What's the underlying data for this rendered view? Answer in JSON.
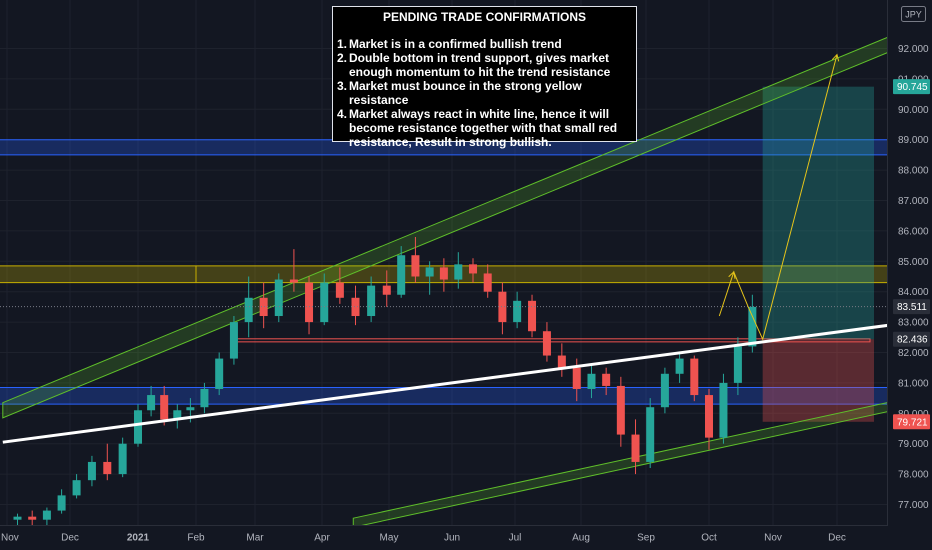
{
  "chart_data": {
    "type": "candlestick",
    "currency_label": "JPY",
    "x_ticks": [
      "Nov",
      "Dec",
      "2021",
      "Feb",
      "Mar",
      "Apr",
      "May",
      "Jun",
      "Jul",
      "Aug",
      "Sep",
      "Oct",
      "Nov",
      "Dec"
    ],
    "y_ticks": [
      "77.000",
      "78.000",
      "79.000",
      "80.000",
      "81.000",
      "82.000",
      "83.000",
      "84.000",
      "85.000",
      "86.000",
      "87.000",
      "88.000",
      "89.000",
      "90.000",
      "91.000",
      "92.000"
    ],
    "ylim": [
      76.2,
      92.9
    ],
    "price_labels": [
      {
        "text": "90.745",
        "value": 90.745,
        "color": "#26a69a"
      },
      {
        "text": "83.511",
        "value": 83.511,
        "color": "#2a2e39"
      },
      {
        "text": "82.436",
        "value": 82.436,
        "color": "#2a2e39"
      },
      {
        "text": "79.721",
        "value": 79.721,
        "color": "#ef5350"
      }
    ],
    "annotation": {
      "title": "PENDING TRADE CONFIRMATIONS",
      "items": [
        {
          "num": "1.",
          "text": "Market is in a confirmed bullish trend"
        },
        {
          "num": "2.",
          "text": "Double bottom in trend support, gives market enough momentum to hit the trend resistance"
        },
        {
          "num": "3.",
          "text": "Market must bounce in the strong yellow resistance"
        },
        {
          "num": "4.",
          "text": "Market always react in white line, hence it will become resistance together with that small red resistance, Result in strong bullish."
        }
      ]
    },
    "zones": [
      {
        "name": "blue-zone-upper",
        "from": 88.5,
        "to": 89.0,
        "color": "#2962ff"
      },
      {
        "name": "yellow-resistance-zone",
        "from": 84.3,
        "to": 84.85,
        "color": "#c7b000"
      },
      {
        "name": "blue-zone-lower",
        "from": 80.3,
        "to": 80.85,
        "color": "#2962ff"
      }
    ],
    "red_resistance": {
      "from": 82.35,
      "to": 82.45,
      "color": "#ef5350"
    },
    "trend_line": {
      "start": [
        "2020-10-30",
        79.05
      ],
      "end": [
        "2021-12-31",
        82.95
      ]
    },
    "upper_channel": {
      "start": [
        "2020-10-30",
        80.35
      ],
      "end": [
        "2021-12-31",
        92.55
      ],
      "width": 0.5
    },
    "lower_channel": {
      "start": [
        "2021-04-15",
        76.55
      ],
      "end": [
        "2021-12-31",
        80.45
      ],
      "width": 0.3
    },
    "position": {
      "start": "2021-10-27",
      "end": "2021-12-31",
      "entry": 82.436,
      "target": 90.745,
      "stop": 79.721
    },
    "projection": [
      [
        "2021-10-06",
        83.2
      ],
      [
        "2021-10-13",
        84.65
      ],
      [
        "2021-10-20",
        83.5
      ],
      [
        "2021-10-27",
        82.436
      ],
      [
        "2021-12-01",
        91.8
      ]
    ],
    "candles": [
      {
        "date": "2020-11-06",
        "ohlc": [
          76.5,
          76.7,
          76.2,
          76.6
        ]
      },
      {
        "date": "2020-11-13",
        "ohlc": [
          76.6,
          76.8,
          76.3,
          76.5
        ]
      },
      {
        "date": "2020-11-20",
        "ohlc": [
          76.5,
          76.9,
          76.3,
          76.8
        ]
      },
      {
        "date": "2020-11-27",
        "ohlc": [
          76.8,
          77.5,
          76.7,
          77.3
        ]
      },
      {
        "date": "2020-12-04",
        "ohlc": [
          77.3,
          78.0,
          77.2,
          77.8
        ]
      },
      {
        "date": "2020-12-11",
        "ohlc": [
          77.8,
          78.6,
          77.6,
          78.4
        ]
      },
      {
        "date": "2020-12-18",
        "ohlc": [
          78.4,
          79.0,
          77.8,
          78.0
        ]
      },
      {
        "date": "2020-12-25",
        "ohlc": [
          78.0,
          79.2,
          77.9,
          79.0
        ]
      },
      {
        "date": "2021-01-01",
        "ohlc": [
          79.0,
          80.3,
          78.9,
          80.1
        ]
      },
      {
        "date": "2021-01-08",
        "ohlc": [
          80.1,
          80.9,
          79.9,
          80.6
        ]
      },
      {
        "date": "2021-01-15",
        "ohlc": [
          80.6,
          80.9,
          79.6,
          79.8
        ]
      },
      {
        "date": "2021-01-22",
        "ohlc": [
          79.8,
          80.3,
          79.5,
          80.1
        ]
      },
      {
        "date": "2021-01-29",
        "ohlc": [
          80.1,
          80.5,
          79.7,
          80.2
        ]
      },
      {
        "date": "2021-02-05",
        "ohlc": [
          80.2,
          81.0,
          80.0,
          80.8
        ]
      },
      {
        "date": "2021-02-12",
        "ohlc": [
          80.8,
          82.0,
          80.6,
          81.8
        ]
      },
      {
        "date": "2021-02-19",
        "ohlc": [
          81.8,
          83.2,
          81.6,
          83.0
        ]
      },
      {
        "date": "2021-02-26",
        "ohlc": [
          83.0,
          84.5,
          82.5,
          83.8
        ]
      },
      {
        "date": "2021-03-05",
        "ohlc": [
          83.8,
          84.3,
          82.8,
          83.2
        ]
      },
      {
        "date": "2021-03-12",
        "ohlc": [
          83.2,
          84.6,
          83.0,
          84.4
        ]
      },
      {
        "date": "2021-03-19",
        "ohlc": [
          84.4,
          85.4,
          84.0,
          84.3
        ]
      },
      {
        "date": "2021-03-26",
        "ohlc": [
          84.3,
          84.5,
          82.6,
          83.0
        ]
      },
      {
        "date": "2021-04-02",
        "ohlc": [
          83.0,
          84.6,
          82.9,
          84.3
        ]
      },
      {
        "date": "2021-04-09",
        "ohlc": [
          84.3,
          84.8,
          83.6,
          83.8
        ]
      },
      {
        "date": "2021-04-16",
        "ohlc": [
          83.8,
          84.2,
          82.9,
          83.2
        ]
      },
      {
        "date": "2021-04-23",
        "ohlc": [
          83.2,
          84.5,
          83.0,
          84.2
        ]
      },
      {
        "date": "2021-04-30",
        "ohlc": [
          84.2,
          84.7,
          83.5,
          83.9
        ]
      },
      {
        "date": "2021-05-07",
        "ohlc": [
          83.9,
          85.5,
          83.8,
          85.2
        ]
      },
      {
        "date": "2021-05-14",
        "ohlc": [
          85.2,
          85.8,
          84.3,
          84.5
        ]
      },
      {
        "date": "2021-05-21",
        "ohlc": [
          84.5,
          85.0,
          83.9,
          84.8
        ]
      },
      {
        "date": "2021-05-28",
        "ohlc": [
          84.8,
          85.1,
          84.0,
          84.4
        ]
      },
      {
        "date": "2021-06-04",
        "ohlc": [
          84.4,
          85.3,
          84.1,
          84.9
        ]
      },
      {
        "date": "2021-06-11",
        "ohlc": [
          84.9,
          85.1,
          84.3,
          84.6
        ]
      },
      {
        "date": "2021-06-18",
        "ohlc": [
          84.6,
          84.9,
          83.8,
          84.0
        ]
      },
      {
        "date": "2021-06-25",
        "ohlc": [
          84.0,
          84.3,
          82.6,
          83.0
        ]
      },
      {
        "date": "2021-07-02",
        "ohlc": [
          83.0,
          84.0,
          82.8,
          83.7
        ]
      },
      {
        "date": "2021-07-09",
        "ohlc": [
          83.7,
          83.9,
          82.5,
          82.7
        ]
      },
      {
        "date": "2021-07-16",
        "ohlc": [
          82.7,
          83.0,
          81.7,
          81.9
        ]
      },
      {
        "date": "2021-07-23",
        "ohlc": [
          81.9,
          82.3,
          81.2,
          81.5
        ]
      },
      {
        "date": "2021-07-30",
        "ohlc": [
          81.5,
          81.8,
          80.4,
          80.8
        ]
      },
      {
        "date": "2021-08-06",
        "ohlc": [
          80.8,
          81.6,
          80.5,
          81.3
        ]
      },
      {
        "date": "2021-08-13",
        "ohlc": [
          81.3,
          81.5,
          80.6,
          80.9
        ]
      },
      {
        "date": "2021-08-20",
        "ohlc": [
          80.9,
          81.2,
          78.9,
          79.3
        ]
      },
      {
        "date": "2021-08-27",
        "ohlc": [
          79.3,
          79.8,
          78.0,
          78.4
        ]
      },
      {
        "date": "2021-09-03",
        "ohlc": [
          78.4,
          80.5,
          78.2,
          80.2
        ]
      },
      {
        "date": "2021-09-10",
        "ohlc": [
          80.2,
          81.5,
          80.0,
          81.3
        ]
      },
      {
        "date": "2021-09-17",
        "ohlc": [
          81.3,
          82.0,
          81.0,
          81.8
        ]
      },
      {
        "date": "2021-09-24",
        "ohlc": [
          81.8,
          81.9,
          80.4,
          80.6
        ]
      },
      {
        "date": "2021-10-01",
        "ohlc": [
          80.6,
          80.8,
          78.8,
          79.2
        ]
      },
      {
        "date": "2021-10-08",
        "ohlc": [
          79.2,
          81.3,
          79.0,
          81.0
        ]
      },
      {
        "date": "2021-10-15",
        "ohlc": [
          81.0,
          82.5,
          80.6,
          82.2
        ]
      },
      {
        "date": "2021-10-22",
        "ohlc": [
          82.2,
          83.9,
          82.0,
          83.5
        ]
      }
    ]
  }
}
